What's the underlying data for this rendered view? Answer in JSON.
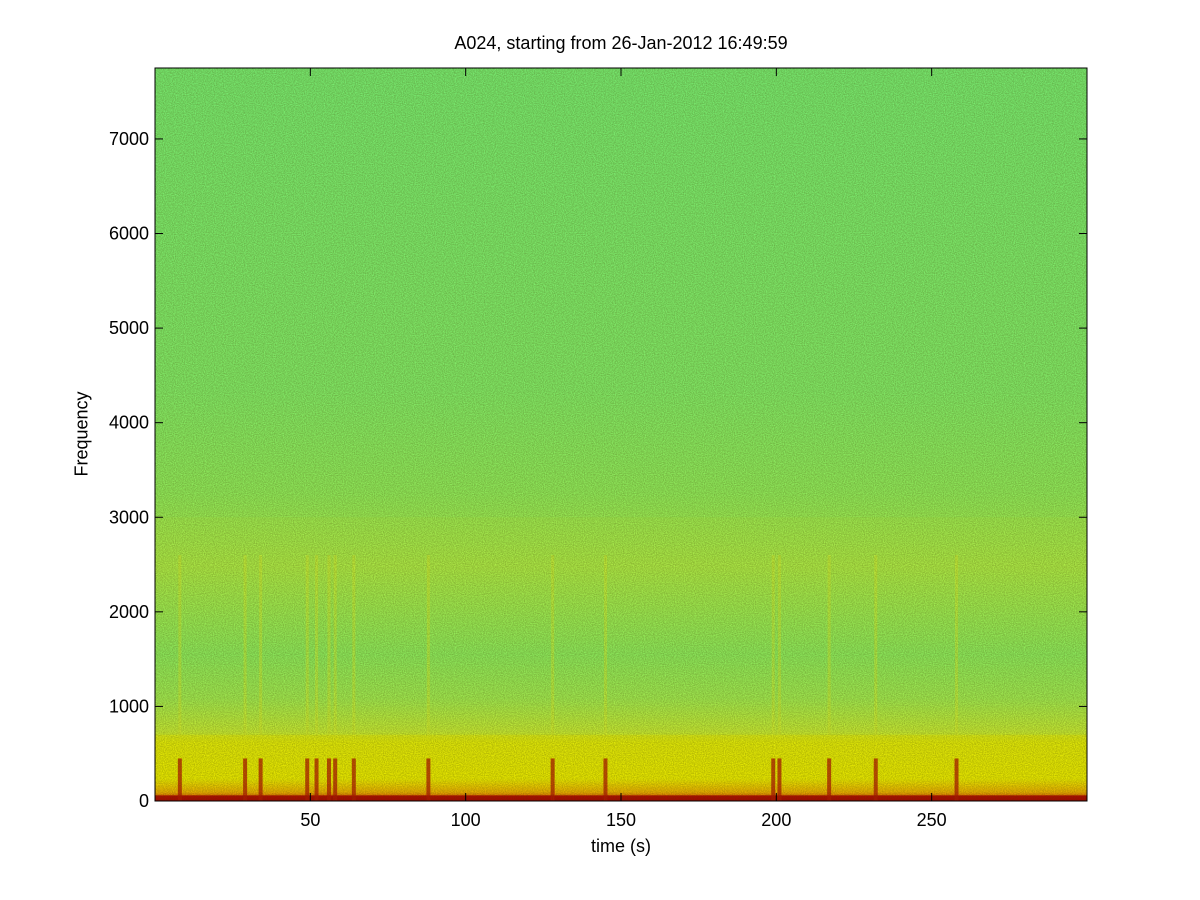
{
  "chart_data": {
    "type": "heatmap",
    "title": "A024, starting from 26-Jan-2012 16:49:59",
    "xlabel": "time (s)",
    "ylabel": "Frequency",
    "xlim": [
      0,
      300
    ],
    "ylim": [
      0,
      7750
    ],
    "xticks": [
      50,
      100,
      150,
      200,
      250
    ],
    "yticks": [
      0,
      1000,
      2000,
      3000,
      4000,
      5000,
      6000,
      7000
    ],
    "grid": false,
    "colormap": "jet",
    "colors": {
      "high_energy": "#b40000",
      "mid_energy": "#ffff00",
      "background": "#7cff7c"
    },
    "energy_bands": [
      {
        "freq_from": 0,
        "freq_to": 60,
        "level": "very high"
      },
      {
        "freq_from": 60,
        "freq_to": 700,
        "level": "high"
      },
      {
        "freq_from": 700,
        "freq_to": 3000,
        "level": "moderate"
      },
      {
        "freq_from": 3000,
        "freq_to": 7750,
        "level": "low"
      }
    ],
    "transient_times": [
      8,
      29,
      34,
      49,
      52,
      56,
      58,
      64,
      88,
      128,
      145,
      199,
      201,
      217,
      232,
      258
    ]
  }
}
